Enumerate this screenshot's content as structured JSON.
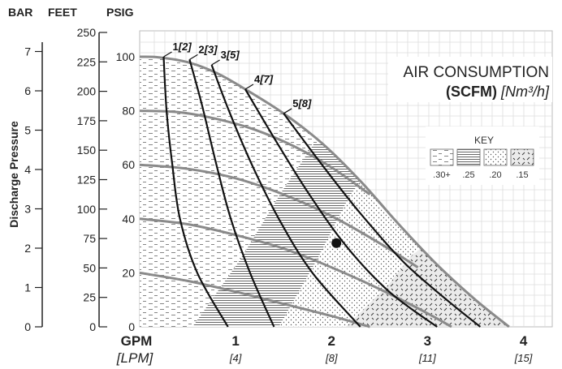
{
  "chart_data": {
    "type": "line",
    "title": "AIR CONSUMPTION",
    "subtitle_bold": "(SCFM)",
    "subtitle_italic": "[Nm³/h]",
    "ylabel": "Discharge Pressure",
    "axis_headers": {
      "bar": "BAR",
      "feet": "FEET",
      "psig": "PSIG"
    },
    "xlabel": {
      "gpm": "GPM",
      "lpm": "[LPM]"
    },
    "xlim": [
      0,
      4.3
    ],
    "ylim": [
      0,
      100
    ],
    "x_ticks": [
      {
        "gpm": 1,
        "gpm_label": "1",
        "lpm_label": "[4]"
      },
      {
        "gpm": 2,
        "gpm_label": "2",
        "lpm_label": "[8]"
      },
      {
        "gpm": 3,
        "gpm_label": "3",
        "lpm_label": "[11]"
      },
      {
        "gpm": 4,
        "gpm_label": "4",
        "lpm_label": "[15]"
      }
    ],
    "psig_ticks": [
      "0",
      "20",
      "40",
      "60",
      "80",
      "100"
    ],
    "feet_ticks": [
      "0",
      "25",
      "50",
      "75",
      "100",
      "125",
      "150",
      "175",
      "200",
      "225",
      "250"
    ],
    "bar_ticks": [
      "0",
      "1",
      "2",
      "3",
      "4",
      "5",
      "6",
      "7"
    ],
    "key_title": "KEY",
    "key": [
      {
        "label": ".30+",
        "pattern": "dash"
      },
      {
        "label": ".25",
        "pattern": "hline"
      },
      {
        "label": ".20",
        "pattern": "dots"
      },
      {
        "label": ".15",
        "pattern": "slash"
      }
    ],
    "envelope": [
      [
        0,
        100
      ],
      [
        0.2,
        99.8
      ],
      [
        0.5,
        98
      ],
      [
        0.8,
        94
      ],
      [
        1.1,
        88
      ],
      [
        1.5,
        79
      ],
      [
        1.9,
        68
      ],
      [
        2.3,
        54
      ],
      [
        2.7,
        38
      ],
      [
        3.1,
        23
      ],
      [
        3.5,
        10
      ],
      [
        3.85,
        0
      ]
    ],
    "pressure_curves": [
      {
        "points": [
          [
            0,
            80
          ],
          [
            0.4,
            79.5
          ],
          [
            0.8,
            77
          ],
          [
            1.2,
            73
          ],
          [
            1.6,
            67
          ],
          [
            2.0,
            59
          ],
          [
            2.4,
            49
          ]
        ]
      },
      {
        "points": [
          [
            0,
            60
          ],
          [
            0.5,
            58.5
          ],
          [
            1.0,
            55
          ],
          [
            1.5,
            49
          ],
          [
            2.0,
            41
          ],
          [
            2.5,
            31
          ],
          [
            2.9,
            22
          ]
        ]
      },
      {
        "points": [
          [
            0,
            40
          ],
          [
            0.5,
            38
          ],
          [
            1.0,
            34
          ],
          [
            1.5,
            29
          ],
          [
            2.0,
            22
          ],
          [
            2.5,
            14
          ],
          [
            3.0,
            5
          ],
          [
            3.25,
            0
          ]
        ]
      },
      {
        "points": [
          [
            0,
            20
          ],
          [
            0.5,
            17
          ],
          [
            1.0,
            13
          ],
          [
            1.5,
            8.5
          ],
          [
            2.0,
            4
          ],
          [
            2.4,
            0
          ]
        ]
      }
    ],
    "air_curves": [
      {
        "label": "1",
        "label_metric": "[2]",
        "points": [
          [
            0.25,
            100
          ],
          [
            0.28,
            80
          ],
          [
            0.34,
            60
          ],
          [
            0.42,
            40
          ],
          [
            0.6,
            20
          ],
          [
            0.92,
            0
          ]
        ]
      },
      {
        "label": "2",
        "label_metric": "[3]",
        "points": [
          [
            0.52,
            99
          ],
          [
            0.65,
            82
          ],
          [
            0.8,
            60
          ],
          [
            0.95,
            40
          ],
          [
            1.15,
            20
          ],
          [
            1.4,
            0
          ]
        ]
      },
      {
        "label": "3",
        "label_metric": "[5]",
        "points": [
          [
            0.75,
            97
          ],
          [
            0.93,
            80
          ],
          [
            1.17,
            60
          ],
          [
            1.45,
            40
          ],
          [
            1.8,
            20
          ],
          [
            2.3,
            0
          ]
        ]
      },
      {
        "label": "4",
        "label_metric": "[7]",
        "points": [
          [
            1.1,
            88
          ],
          [
            1.4,
            70
          ],
          [
            1.75,
            50
          ],
          [
            2.15,
            30
          ],
          [
            2.6,
            13
          ],
          [
            3.1,
            0
          ]
        ]
      },
      {
        "label": "5",
        "label_metric": "[8]",
        "points": [
          [
            1.5,
            79
          ],
          [
            1.9,
            60
          ],
          [
            2.3,
            42
          ],
          [
            2.75,
            24
          ],
          [
            3.2,
            10
          ],
          [
            3.55,
            0
          ]
        ]
      }
    ],
    "zone_boundaries": {
      "hline_left": [
        [
          0.55,
          0
        ],
        [
          1.05,
          25
        ],
        [
          1.48,
          50
        ],
        [
          1.82,
          68
        ],
        [
          1.9,
          68
        ]
      ],
      "hline_right": [
        [
          1.45,
          0
        ],
        [
          1.85,
          25
        ],
        [
          2.18,
          48
        ],
        [
          2.3,
          54
        ]
      ],
      "dots_right": [
        [
          2.15,
          0
        ],
        [
          2.6,
          16
        ],
        [
          2.85,
          27
        ],
        [
          2.9,
          28
        ]
      ],
      "slash_right": [
        [
          3.0,
          0
        ],
        [
          3.08,
          2
        ],
        [
          3.1,
          3
        ]
      ]
    },
    "operating_point": {
      "x": 2.05,
      "y": 31
    }
  }
}
